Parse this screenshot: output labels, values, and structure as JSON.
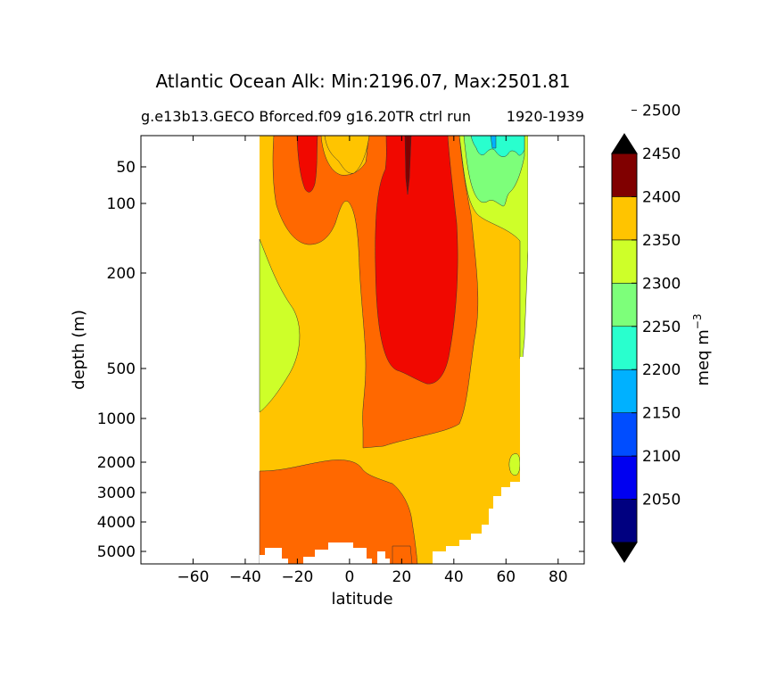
{
  "chart_data": {
    "type": "contourf",
    "title": "Atlantic Ocean Alk: Min:2196.07, Max:2501.81",
    "subtitle_left": "g.e13b13.GECO Bforced.f09 g16.20TR ctrl run",
    "subtitle_right": "1920-1939",
    "xlabel": "latitude",
    "ylabel": "depth (m)",
    "xlim": [
      -80,
      90
    ],
    "x_ticks": [
      -60,
      -40,
      -20,
      0,
      20,
      40,
      60,
      80
    ],
    "y_ticks": [
      50,
      100,
      200,
      500,
      1000,
      2000,
      3000,
      4000,
      5000
    ],
    "y_scale": "depth-stretched, inverted",
    "colorbar": {
      "label": "meq m",
      "label_superscript": "−3",
      "levels": [
        2050,
        2100,
        2150,
        2200,
        2250,
        2300,
        2350,
        2400,
        2450,
        2500
      ],
      "extend": "both",
      "colors": [
        "#000080",
        "#0000f1",
        "#004dff",
        "#00b1ff",
        "#29ffce",
        "#7dff7a",
        "#ceff29",
        "#ffc400",
        "#ff6800",
        "#f10800",
        "#800000"
      ]
    },
    "data_extent": {
      "lat_min": -34,
      "lat_max": 68
    }
  }
}
